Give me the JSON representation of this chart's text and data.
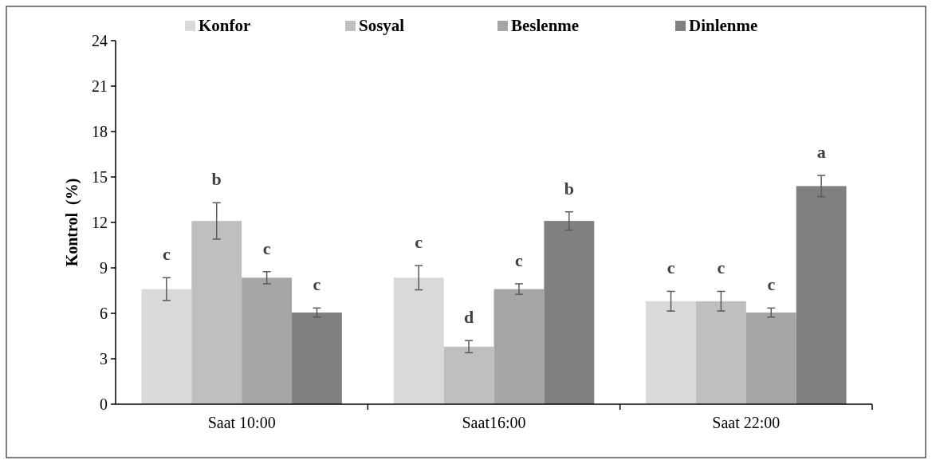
{
  "chart_data": {
    "type": "bar",
    "ylabel": "Kontrol  (%)",
    "categories": [
      "Saat 10:00",
      "Saat16:00",
      "Saat 22:00"
    ],
    "series": [
      {
        "name": "Konfor",
        "color": "#d9d9d9",
        "values": [
          7.6,
          8.35,
          6.8
        ],
        "errors": [
          0.75,
          0.8,
          0.65
        ]
      },
      {
        "name": "Sosyal",
        "color": "#bfbfbf",
        "values": [
          12.1,
          3.8,
          6.8
        ],
        "errors": [
          1.2,
          0.4,
          0.65
        ]
      },
      {
        "name": "Beslenme",
        "color": "#a6a6a6",
        "values": [
          8.35,
          7.6,
          6.05
        ],
        "errors": [
          0.4,
          0.35,
          0.3
        ]
      },
      {
        "name": "Dinlenme",
        "color": "#808080",
        "values": [
          6.05,
          12.1,
          14.4
        ],
        "errors": [
          0.3,
          0.6,
          0.7
        ]
      }
    ],
    "annotations": [
      "c",
      "b",
      "c",
      "c",
      "c",
      "d",
      "c",
      "b",
      "c",
      "c",
      "c",
      "a"
    ],
    "ylim": [
      0,
      24
    ],
    "yticks": [
      0,
      3,
      6,
      9,
      12,
      15,
      18,
      21,
      24
    ],
    "grid": false,
    "legend": "top"
  }
}
